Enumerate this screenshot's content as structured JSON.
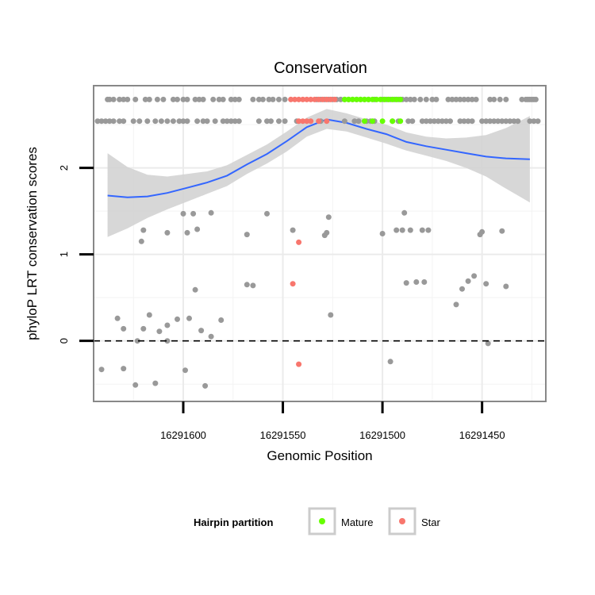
{
  "chart_data": {
    "type": "scatter",
    "title": "Conservation",
    "xlabel": "Genomic Position",
    "ylabel": "phyloP LRT conservation scores",
    "xlim": [
      16291645,
      16291418
    ],
    "ylim": [
      -0.7,
      2.95
    ],
    "x_reversed": true,
    "x_ticks": [
      16291600,
      16291550,
      16291500,
      16291450
    ],
    "x_tick_labels": [
      "16291600",
      "16291550",
      "16291500",
      "16291450"
    ],
    "y_ticks": [
      0,
      1,
      2
    ],
    "y_tick_labels": [
      "0",
      "1",
      "2"
    ],
    "reference_line": {
      "y": 0,
      "style": "dashed"
    },
    "colors": {
      "Other": "#999999",
      "Mature": "#66ff00",
      "Star": "#f8766d",
      "smooth": "#3366ff",
      "band": "#d3d3d3"
    },
    "legend": {
      "title": "Hairpin partition",
      "position": "bottom",
      "entries": [
        {
          "label": "Mature",
          "color": "#66ff00"
        },
        {
          "label": "Star",
          "color": "#f8766d"
        }
      ]
    },
    "smooth": {
      "x": [
        16291638,
        16291628,
        16291618,
        16291608,
        16291598,
        16291588,
        16291578,
        16291568,
        16291558,
        16291548,
        16291538,
        16291528,
        16291518,
        16291508,
        16291498,
        16291488,
        16291478,
        16291468,
        16291458,
        16291448,
        16291438,
        16291426
      ],
      "y": [
        1.68,
        1.66,
        1.67,
        1.71,
        1.77,
        1.83,
        1.91,
        2.04,
        2.16,
        2.31,
        2.47,
        2.56,
        2.52,
        2.45,
        2.39,
        2.3,
        2.25,
        2.21,
        2.17,
        2.13,
        2.11,
        2.1
      ],
      "lower": [
        1.2,
        1.3,
        1.42,
        1.52,
        1.61,
        1.7,
        1.79,
        1.93,
        2.05,
        2.19,
        2.36,
        2.45,
        2.42,
        2.35,
        2.28,
        2.2,
        2.14,
        2.08,
        2.0,
        1.9,
        1.76,
        1.6
      ],
      "upper": [
        2.17,
        2.01,
        1.92,
        1.9,
        1.93,
        1.96,
        2.03,
        2.15,
        2.27,
        2.42,
        2.58,
        2.68,
        2.63,
        2.56,
        2.5,
        2.41,
        2.36,
        2.34,
        2.35,
        2.38,
        2.46,
        2.6
      ]
    },
    "series": [
      {
        "name": "Other",
        "points": [
          [
            16291638,
            2.79
          ],
          [
            16291637,
            2.79
          ],
          [
            16291635,
            2.79
          ],
          [
            16291632,
            2.79
          ],
          [
            16291630,
            2.79
          ],
          [
            16291628,
            2.79
          ],
          [
            16291624,
            2.79
          ],
          [
            16291619,
            2.79
          ],
          [
            16291617,
            2.79
          ],
          [
            16291613,
            2.79
          ],
          [
            16291610,
            2.79
          ],
          [
            16291605,
            2.79
          ],
          [
            16291603,
            2.79
          ],
          [
            16291600,
            2.79
          ],
          [
            16291598,
            2.79
          ],
          [
            16291594,
            2.79
          ],
          [
            16291592,
            2.79
          ],
          [
            16291590,
            2.79
          ],
          [
            16291585,
            2.79
          ],
          [
            16291582,
            2.79
          ],
          [
            16291580,
            2.79
          ],
          [
            16291576,
            2.79
          ],
          [
            16291574,
            2.79
          ],
          [
            16291572,
            2.79
          ],
          [
            16291565,
            2.79
          ],
          [
            16291562,
            2.79
          ],
          [
            16291560,
            2.79
          ],
          [
            16291557,
            2.79
          ],
          [
            16291555,
            2.79
          ],
          [
            16291552,
            2.79
          ],
          [
            16291549,
            2.79
          ],
          [
            16291533,
            2.79
          ],
          [
            16291531,
            2.79
          ],
          [
            16291529,
            2.79
          ],
          [
            16291527,
            2.79
          ],
          [
            16291525,
            2.79
          ],
          [
            16291523,
            2.79
          ],
          [
            16291521,
            2.79
          ],
          [
            16291519,
            2.79
          ],
          [
            16291517,
            2.79
          ],
          [
            16291515,
            2.79
          ],
          [
            16291513,
            2.79
          ],
          [
            16291511,
            2.79
          ],
          [
            16291509,
            2.79
          ],
          [
            16291507,
            2.79
          ],
          [
            16291504,
            2.79
          ],
          [
            16291500,
            2.79
          ],
          [
            16291498,
            2.79
          ],
          [
            16291496,
            2.79
          ],
          [
            16291494,
            2.79
          ],
          [
            16291492,
            2.79
          ],
          [
            16291490,
            2.79
          ],
          [
            16291488,
            2.79
          ],
          [
            16291486,
            2.79
          ],
          [
            16291484,
            2.79
          ],
          [
            16291481,
            2.79
          ],
          [
            16291478,
            2.79
          ],
          [
            16291475,
            2.79
          ],
          [
            16291473,
            2.79
          ],
          [
            16291467,
            2.79
          ],
          [
            16291465,
            2.79
          ],
          [
            16291463,
            2.79
          ],
          [
            16291461,
            2.79
          ],
          [
            16291459,
            2.79
          ],
          [
            16291457,
            2.79
          ],
          [
            16291455,
            2.79
          ],
          [
            16291453,
            2.79
          ],
          [
            16291446,
            2.79
          ],
          [
            16291444,
            2.79
          ],
          [
            16291441,
            2.79
          ],
          [
            16291438,
            2.79
          ],
          [
            16291430,
            2.79
          ],
          [
            16291428,
            2.79
          ],
          [
            16291427,
            2.79
          ],
          [
            16291426,
            2.79
          ],
          [
            16291425,
            2.79
          ],
          [
            16291424,
            2.79
          ],
          [
            16291423,
            2.79
          ],
          [
            16291643,
            2.54
          ],
          [
            16291641,
            2.54
          ],
          [
            16291639,
            2.54
          ],
          [
            16291637,
            2.54
          ],
          [
            16291635,
            2.54
          ],
          [
            16291632,
            2.54
          ],
          [
            16291630,
            2.54
          ],
          [
            16291625,
            2.54
          ],
          [
            16291622,
            2.54
          ],
          [
            16291618,
            2.54
          ],
          [
            16291614,
            2.54
          ],
          [
            16291611,
            2.54
          ],
          [
            16291608,
            2.54
          ],
          [
            16291605,
            2.54
          ],
          [
            16291602,
            2.54
          ],
          [
            16291600,
            2.54
          ],
          [
            16291598,
            2.54
          ],
          [
            16291593,
            2.54
          ],
          [
            16291590,
            2.54
          ],
          [
            16291588,
            2.54
          ],
          [
            16291584,
            2.54
          ],
          [
            16291580,
            2.54
          ],
          [
            16291578,
            2.54
          ],
          [
            16291576,
            2.54
          ],
          [
            16291574,
            2.54
          ],
          [
            16291572,
            2.54
          ],
          [
            16291562,
            2.54
          ],
          [
            16291558,
            2.54
          ],
          [
            16291556,
            2.54
          ],
          [
            16291552,
            2.54
          ],
          [
            16291549,
            2.54
          ],
          [
            16291543,
            2.54
          ],
          [
            16291531,
            2.54
          ],
          [
            16291519,
            2.54
          ],
          [
            16291514,
            2.54
          ],
          [
            16291512,
            2.54
          ],
          [
            16291508,
            2.54
          ],
          [
            16291506,
            2.54
          ],
          [
            16291504,
            2.54
          ],
          [
            16291495,
            2.54
          ],
          [
            16291492,
            2.54
          ],
          [
            16291487,
            2.54
          ],
          [
            16291485,
            2.54
          ],
          [
            16291480,
            2.54
          ],
          [
            16291478,
            2.54
          ],
          [
            16291476,
            2.54
          ],
          [
            16291474,
            2.54
          ],
          [
            16291472,
            2.54
          ],
          [
            16291470,
            2.54
          ],
          [
            16291468,
            2.54
          ],
          [
            16291466,
            2.54
          ],
          [
            16291461,
            2.54
          ],
          [
            16291459,
            2.54
          ],
          [
            16291457,
            2.54
          ],
          [
            16291455,
            2.54
          ],
          [
            16291450,
            2.54
          ],
          [
            16291448,
            2.54
          ],
          [
            16291446,
            2.54
          ],
          [
            16291444,
            2.54
          ],
          [
            16291442,
            2.54
          ],
          [
            16291440,
            2.54
          ],
          [
            16291438,
            2.54
          ],
          [
            16291436,
            2.54
          ],
          [
            16291434,
            2.54
          ],
          [
            16291432,
            2.54
          ],
          [
            16291426,
            2.54
          ],
          [
            16291424,
            2.54
          ],
          [
            16291422,
            2.54
          ],
          [
            16291600,
            1.47
          ],
          [
            16291595,
            1.47
          ],
          [
            16291586,
            1.48
          ],
          [
            16291558,
            1.47
          ],
          [
            16291568,
            1.23
          ],
          [
            16291593,
            1.29
          ],
          [
            16291620,
            1.28
          ],
          [
            16291621,
            1.15
          ],
          [
            16291608,
            1.25
          ],
          [
            16291598,
            1.25
          ],
          [
            16291545,
            1.28
          ],
          [
            16291527,
            1.43
          ],
          [
            16291528,
            1.25
          ],
          [
            16291529,
            1.22
          ],
          [
            16291489,
            1.48
          ],
          [
            16291500,
            1.24
          ],
          [
            16291493,
            1.28
          ],
          [
            16291490,
            1.28
          ],
          [
            16291486,
            1.28
          ],
          [
            16291480,
            1.28
          ],
          [
            16291477,
            1.28
          ],
          [
            16291450,
            1.26
          ],
          [
            16291451,
            1.23
          ],
          [
            16291440,
            1.27
          ],
          [
            16291594,
            0.59
          ],
          [
            16291568,
            0.65
          ],
          [
            16291565,
            0.64
          ],
          [
            16291488,
            0.67
          ],
          [
            16291483,
            0.68
          ],
          [
            16291479,
            0.68
          ],
          [
            16291454,
            0.75
          ],
          [
            16291457,
            0.69
          ],
          [
            16291460,
            0.6
          ],
          [
            16291448,
            0.66
          ],
          [
            16291438,
            0.63
          ],
          [
            16291463,
            0.42
          ],
          [
            16291633,
            0.26
          ],
          [
            16291630,
            0.14
          ],
          [
            16291623,
            0.0
          ],
          [
            16291620,
            0.14
          ],
          [
            16291617,
            0.3
          ],
          [
            16291612,
            0.11
          ],
          [
            16291608,
            0.18
          ],
          [
            16291608,
            0.0
          ],
          [
            16291603,
            0.25
          ],
          [
            16291597,
            0.26
          ],
          [
            16291591,
            0.12
          ],
          [
            16291586,
            0.05
          ],
          [
            16291581,
            0.24
          ],
          [
            16291526,
            0.3
          ],
          [
            16291641,
            -0.33
          ],
          [
            16291630,
            -0.32
          ],
          [
            16291624,
            -0.51
          ],
          [
            16291614,
            -0.49
          ],
          [
            16291599,
            -0.34
          ],
          [
            16291589,
            -0.52
          ],
          [
            16291496,
            -0.24
          ],
          [
            16291447,
            -0.03
          ]
        ]
      },
      {
        "name": "Star",
        "points": [
          [
            16291546,
            2.79
          ],
          [
            16291544,
            2.79
          ],
          [
            16291542,
            2.79
          ],
          [
            16291540,
            2.79
          ],
          [
            16291538,
            2.79
          ],
          [
            16291536,
            2.79
          ],
          [
            16291534,
            2.79
          ],
          [
            16291532,
            2.79
          ],
          [
            16291530,
            2.79
          ],
          [
            16291528,
            2.79
          ],
          [
            16291526,
            2.79
          ],
          [
            16291524,
            2.79
          ],
          [
            16291542,
            2.54
          ],
          [
            16291540,
            2.54
          ],
          [
            16291538,
            2.54
          ],
          [
            16291536,
            2.54
          ],
          [
            16291532,
            2.54
          ],
          [
            16291528,
            2.54
          ],
          [
            16291542,
            1.14
          ],
          [
            16291545,
            0.66
          ],
          [
            16291542,
            -0.27
          ]
        ]
      },
      {
        "name": "Mature",
        "points": [
          [
            16291519,
            2.79
          ],
          [
            16291517,
            2.79
          ],
          [
            16291515,
            2.79
          ],
          [
            16291513,
            2.79
          ],
          [
            16291511,
            2.79
          ],
          [
            16291509,
            2.79
          ],
          [
            16291507,
            2.79
          ],
          [
            16291505,
            2.79
          ],
          [
            16291503,
            2.79
          ],
          [
            16291501,
            2.79
          ],
          [
            16291499,
            2.79
          ],
          [
            16291497,
            2.79
          ],
          [
            16291495,
            2.79
          ],
          [
            16291493,
            2.79
          ],
          [
            16291491,
            2.79
          ],
          [
            16291509,
            2.54
          ],
          [
            16291505,
            2.54
          ],
          [
            16291500,
            2.54
          ],
          [
            16291495,
            2.54
          ],
          [
            16291491,
            2.54
          ]
        ]
      }
    ]
  }
}
